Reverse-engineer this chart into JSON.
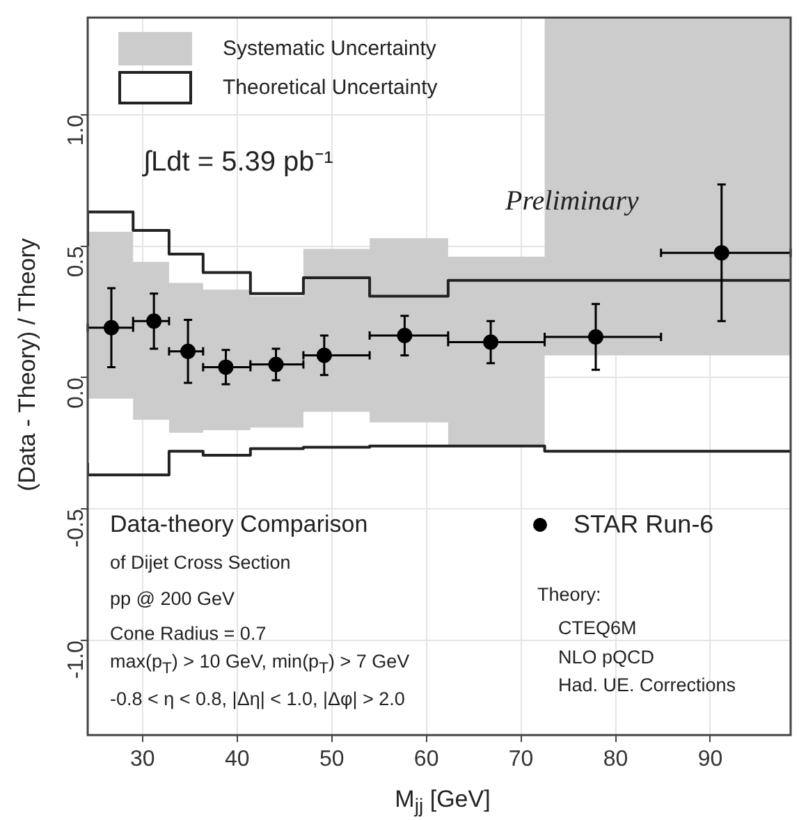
{
  "chart_data": {
    "type": "scatter",
    "xlabel": "M$_{jj}$ [GeV]",
    "ylabel": "(Data - Theory) / Theory",
    "xlim": [
      24.2,
      98.5
    ],
    "ylim": [
      -1.36,
      1.37
    ],
    "xticks": [
      30,
      40,
      50,
      60,
      70,
      80,
      90
    ],
    "yticks": [
      {
        "value": -1,
        "label": "-1.0"
      },
      {
        "value": -0.5,
        "label": "-0.5"
      },
      {
        "value": 0,
        "label": "0.0"
      },
      {
        "value": 0.5,
        "label": "0.5"
      },
      {
        "value": 1,
        "label": "1.0"
      }
    ],
    "grid": true,
    "legend": "top left",
    "series": [
      {
        "type": "step",
        "name": "Systematic Uncertainty",
        "color": "#cccccc",
        "values": [
          null,
          null,
          null,
          null,
          null,
          null,
          null,
          null,
          null,
          null,
          null
        ],
        "x": [
          24.2,
          29.0,
          32.8,
          36.4,
          41.4,
          47.0,
          54.0,
          62.3,
          72.5,
          84.8,
          98.5
        ],
        "lower": [
          -0.08,
          -0.08,
          -0.16,
          -0.21,
          -0.2,
          -0.19,
          -0.13,
          -0.17,
          -0.26,
          0.085,
          0.085
        ],
        "upper": [
          0.58,
          0.555,
          0.44,
          0.36,
          0.335,
          0.31,
          0.49,
          0.53,
          0.46,
          1.37,
          1.37
        ]
      },
      {
        "type": "step",
        "name": "Theoretical Uncertainty",
        "color": "#222222",
        "line_style": "solid",
        "x": [
          24.2,
          29.0,
          32.8,
          36.4,
          41.4,
          47.0,
          54.0,
          62.3,
          72.5,
          84.8,
          98.5
        ],
        "values": [
          0.5,
          0.63,
          0.56,
          0.47,
          0.4,
          0.32,
          0.38,
          0.31,
          0.37,
          0.37,
          0.37
        ]
      },
      {
        "type": "step",
        "color": "#222222",
        "line_style": "solid",
        "x": [
          24.2,
          29.0,
          32.8,
          36.4,
          41.4,
          47.0,
          54.0,
          62.3,
          72.5,
          84.8,
          98.5
        ],
        "values": [
          -0.325,
          -0.37,
          -0.37,
          -0.28,
          -0.295,
          -0.27,
          -0.265,
          -0.26,
          -0.26,
          -0.28,
          -0.28
        ]
      },
      {
        "name": "STAR Run-6",
        "color": "#000000",
        "marker": "circle",
        "x": [
          26.7,
          31.2,
          34.8,
          38.8,
          44.1,
          49.2,
          57.7,
          66.8,
          77.9,
          91.2
        ],
        "values": [
          0.19,
          0.215,
          0.1,
          0.04,
          0.05,
          0.085,
          0.16,
          0.135,
          0.155,
          0.475
        ],
        "errors": [
          0.15,
          0.105,
          0.12,
          0.065,
          0.06,
          0.075,
          0.075,
          0.08,
          0.125,
          0.26
        ],
        "xerrors": [
          [
            24.2,
            29.0
          ],
          [
            29.0,
            32.8
          ],
          [
            32.8,
            36.4
          ],
          [
            36.4,
            41.4
          ],
          [
            41.4,
            47.0
          ],
          [
            47.0,
            54.0
          ],
          [
            54.0,
            62.3
          ],
          [
            62.3,
            72.5
          ],
          [
            72.5,
            84.8
          ],
          [
            84.8,
            98.5
          ]
        ]
      }
    ],
    "annotations": [
      "∫Ldt = 5.39 pb⁻¹",
      "Preliminary",
      "Data-theory Comparison",
      "of Dijet Cross Section",
      "pp @ 200 GeV",
      "Cone Radius = 0.7",
      "max(p$_{T}$) > 10 GeV, min(p$_{T}$) > 7 GeV",
      "-0.8 < η < 0.8, |Δη| < 1.0, |Δφ| > 2.0",
      "Theory:",
      "CTEQ6M",
      "NLO pQCD",
      "Had. UE. Corrections"
    ]
  }
}
